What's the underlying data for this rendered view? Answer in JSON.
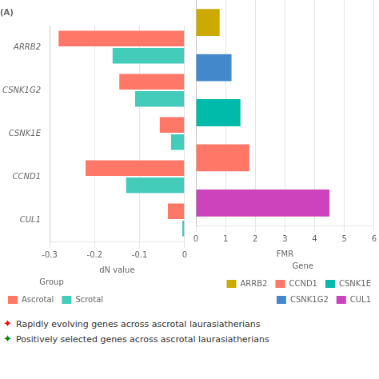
{
  "chart_data": [
    {
      "type": "bar",
      "orientation": "horizontal",
      "title": "(A)",
      "x_label": "dN value",
      "categories": [
        "CUL1",
        "CCND1",
        "CSNK1E",
        "CSNK1G2",
        "ARRB2"
      ],
      "series": [
        {
          "name": "Ascrotal",
          "color": "#FF7766",
          "values": [
            -0.037,
            -0.22,
            -0.055,
            -0.145,
            -0.28
          ]
        },
        {
          "name": "Scrotal",
          "color": "#44CCBB",
          "values": [
            -0.005,
            -0.13,
            -0.03,
            -0.11,
            -0.16
          ]
        }
      ],
      "xlim": [
        -0.3,
        0
      ],
      "xticks": [
        -0.3,
        -0.2,
        -0.1,
        0
      ],
      "grid": true,
      "legend": "lower left",
      "legend_title": "Group"
    },
    {
      "type": "bar",
      "orientation": "horizontal",
      "x_label": "FMR",
      "categories": [
        "CUL1",
        "CCND1",
        "CSNK1E",
        "CSNK1G2",
        "ARRB2"
      ],
      "values": [
        4.5,
        1.8,
        1.5,
        1.2,
        0.8
      ],
      "colors": [
        "#CC44BB",
        "#FF7766",
        "#00BBAA",
        "#4488CC",
        "#CCAA00"
      ],
      "xlim": [
        0,
        6
      ],
      "xticks": [
        0,
        1,
        2,
        3,
        4,
        5,
        6
      ],
      "grid": true,
      "tick_labels": "x",
      "legend": "lower right",
      "legend_title": "Gene",
      "legend_items": [
        {
          "name": "ARRB2",
          "color": "#CCAA00"
        },
        {
          "name": "CCND1",
          "color": "#FF7766"
        },
        {
          "name": "CSNK1E",
          "color": "#00BBAA"
        },
        {
          "name": "CSNK1G2",
          "color": "#4488CC"
        },
        {
          "name": "CUL1",
          "color": "#CC44BB"
        }
      ]
    }
  ],
  "annotations": [
    {
      "symbol": "✦",
      "color": "red",
      "text": "Rapidly evolving genes across ascrotal laurasiatherians"
    },
    {
      "symbol": "✦",
      "color": "green",
      "text": "Positively selected genes across ascrotal laurasiatherians"
    }
  ]
}
